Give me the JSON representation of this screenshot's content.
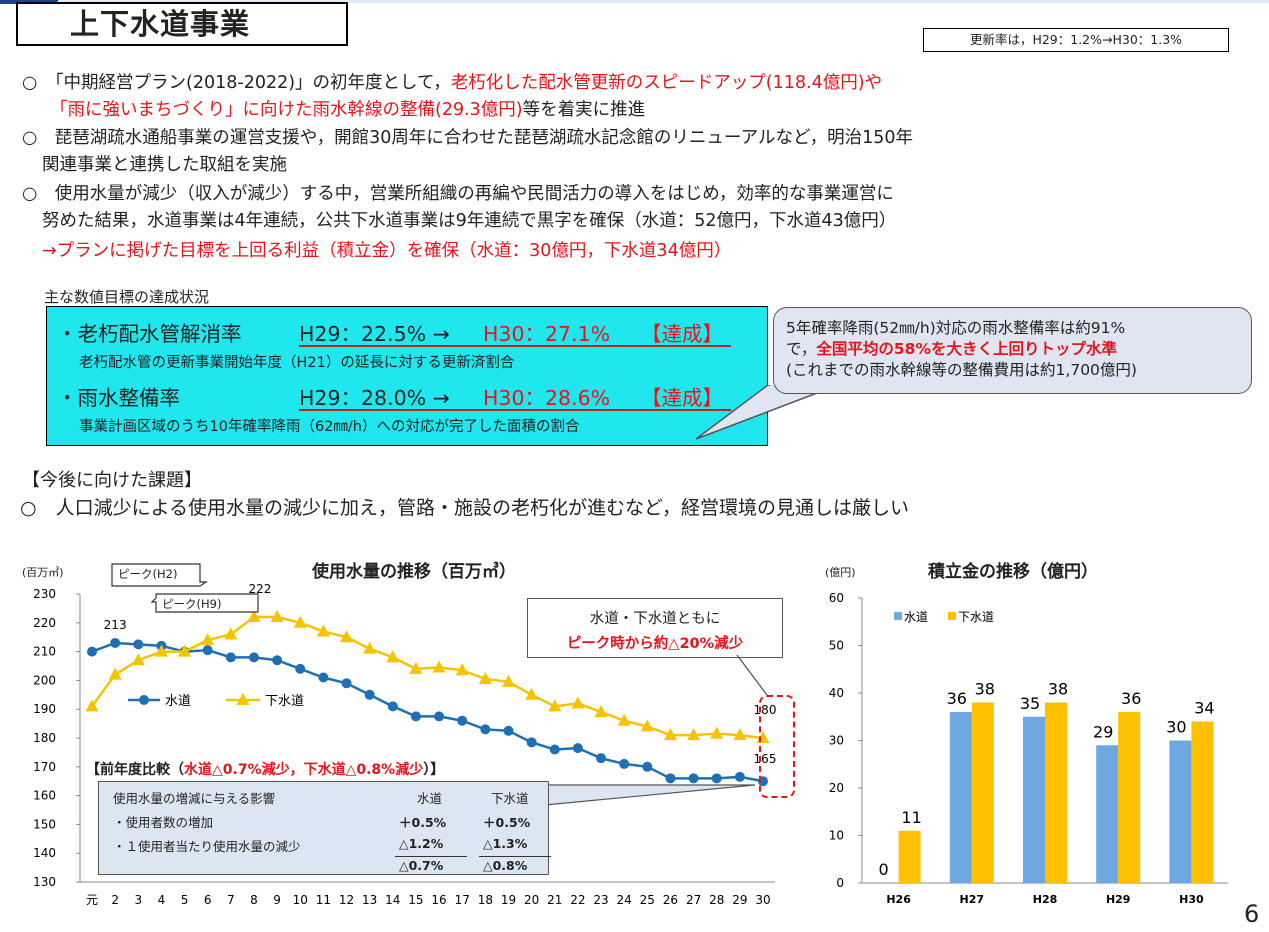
{
  "header": {
    "title": "上下水道事業",
    "update_note": "更新率は，H29：1.2%→H30：1.3%"
  },
  "bullets": {
    "b1_l1_a": "○　「中期経営プラン(2018-2022)」の初年度として，",
    "b1_l1_b": "老朽化した配水管更新のスピードアップ(118.4億円)や",
    "b1_l2_a": "「雨に強いまちづくり」に向けた雨水幹線の整備(29.3億円)",
    "b1_l2_b": "等を着実に推進",
    "b2_l1": "○　琵琶湖疏水通船事業の運営支援や，開館30周年に合わせた琵琶湖疏水記念館のリニューアルなど，明治150年",
    "b2_l2": "関連事業と連携した取組を実施",
    "b3_l1": "○　使用水量が減少（収入が減少）する中，営業所組織の再編や民間活力の導入をはじめ，効率的な事業運営に",
    "b3_l2": "努めた結果，水道事業は4年連続，公共下水道事業は9年連続で黒字を確保（水道：52億円，下水道43億円）",
    "b3_l3": "→プランに掲げた目標を上回る利益（積立金）を確保（水道：30億円，下水道34億円）"
  },
  "goals": {
    "title": "主な数値目標の達成状況",
    "g1_name": "・老朽配水管解消率",
    "g1_h29": "H29：22.5% →",
    "g1_h30": "H30：27.1%",
    "g1_badge": "【達成】",
    "g1_sub": "老朽配水管の更新事業開始年度（H21）の延長に対する更新済割合",
    "g2_name": "・雨水整備率",
    "g2_h29": "H29：28.0% →",
    "g2_h30": "H30：28.6%",
    "g2_badge": "【達成】",
    "g2_sub": "事業計画区域のうち10年確率降雨（62㎜/h）への対応が完了した面積の割合"
  },
  "bubble": {
    "l1": "5年確率降雨(52㎜/h)対応の雨水整備率は約91%",
    "l2_a": "で，",
    "l2_b": "全国平均の58%を大きく上回りトップ水準",
    "l3": "(これまでの雨水幹線等の整備費用は約1,700億円)"
  },
  "issues": {
    "title": "【今後に向けた課題】",
    "l1": "○　人口減少による使用水量の減少に加え，管路・施設の老朽化が進むなど，経営環境の見通しは厳しい"
  },
  "comparison": {
    "title_a": "【前年度比較（",
    "title_b": "水道△0.7%減少，下水道△0.8%減少",
    "title_c": "）】",
    "hdr_label": "使用水量の増減に与える影響",
    "hdr_water": "水道",
    "hdr_sewer": "下水道",
    "r1_label": "・使用者数の増加",
    "r1_water": "＋0.5%",
    "r1_sewer": "＋0.5%",
    "r2_label": "・１使用者当たり使用水量の減少",
    "r2_water": "△1.2%",
    "r2_sewer": "△1.3%",
    "r3_water": "△0.7%",
    "r3_sewer": "△0.8%"
  },
  "callout": {
    "l1": "水道・下水道ともに",
    "l2": "ピーク時から約△20%減少"
  },
  "peaks": {
    "p1": "ピーク(H2)",
    "p2": "ピーク(H9)"
  },
  "page_number": "6",
  "colors": {
    "water": "#1f6fb5",
    "sewer": "#f5c400",
    "reserve_water": "#6fa8e0",
    "reserve_sewer": "#ffc000",
    "accent_red": "#e8141b",
    "goal_bg": "#20e6ee"
  },
  "chart_data": [
    {
      "type": "line",
      "title": "使用水量の推移（百万㎥）",
      "ylabel": "(百万㎥)",
      "x": [
        "元",
        "2",
        "3",
        "4",
        "5",
        "6",
        "7",
        "8",
        "9",
        "10",
        "11",
        "12",
        "13",
        "14",
        "15",
        "16",
        "17",
        "18",
        "19",
        "20",
        "21",
        "22",
        "23",
        "24",
        "25",
        "26",
        "27",
        "28",
        "29",
        "30"
      ],
      "ylim": [
        130,
        230
      ],
      "yticks": [
        130,
        140,
        150,
        160,
        170,
        180,
        190,
        200,
        210,
        220,
        230
      ],
      "series": [
        {
          "name": "水道",
          "marker": "circle",
          "values": [
            210,
            213,
            212.5,
            212,
            210,
            210.5,
            208,
            208,
            207,
            204,
            201,
            199,
            195,
            191,
            187.5,
            187.5,
            186,
            183,
            182.5,
            178.5,
            176,
            176.5,
            173,
            171,
            170,
            166,
            166,
            166,
            166.5,
            165
          ]
        },
        {
          "name": "下水道",
          "marker": "triangle",
          "values": [
            191,
            202,
            207,
            210,
            210,
            214,
            216,
            222,
            222,
            220,
            217,
            215,
            211,
            208,
            204,
            204.5,
            203.5,
            200.5,
            199.5,
            195,
            191,
            192,
            189,
            186,
            184,
            181,
            181,
            181.5,
            181,
            180
          ]
        }
      ],
      "data_labels": [
        {
          "series": "水道",
          "x": "2",
          "text": "213"
        },
        {
          "series": "下水道",
          "x": "8",
          "text": "222"
        },
        {
          "series": "下水道",
          "x": "30",
          "text": "180"
        },
        {
          "series": "水道",
          "x": "30",
          "text": "165"
        }
      ],
      "legend": "left"
    },
    {
      "type": "bar",
      "title": "積立金の推移（億円）",
      "ylabel": "(億円)",
      "categories": [
        "H26",
        "H27",
        "H28",
        "H29",
        "H30"
      ],
      "ylim": [
        0,
        60
      ],
      "yticks": [
        0,
        10,
        20,
        30,
        40,
        50,
        60
      ],
      "series": [
        {
          "name": "水道",
          "values": [
            0,
            36,
            35,
            29,
            30
          ]
        },
        {
          "name": "下水道",
          "values": [
            11,
            38,
            38,
            36,
            34
          ]
        }
      ],
      "legend": "top-left"
    }
  ]
}
